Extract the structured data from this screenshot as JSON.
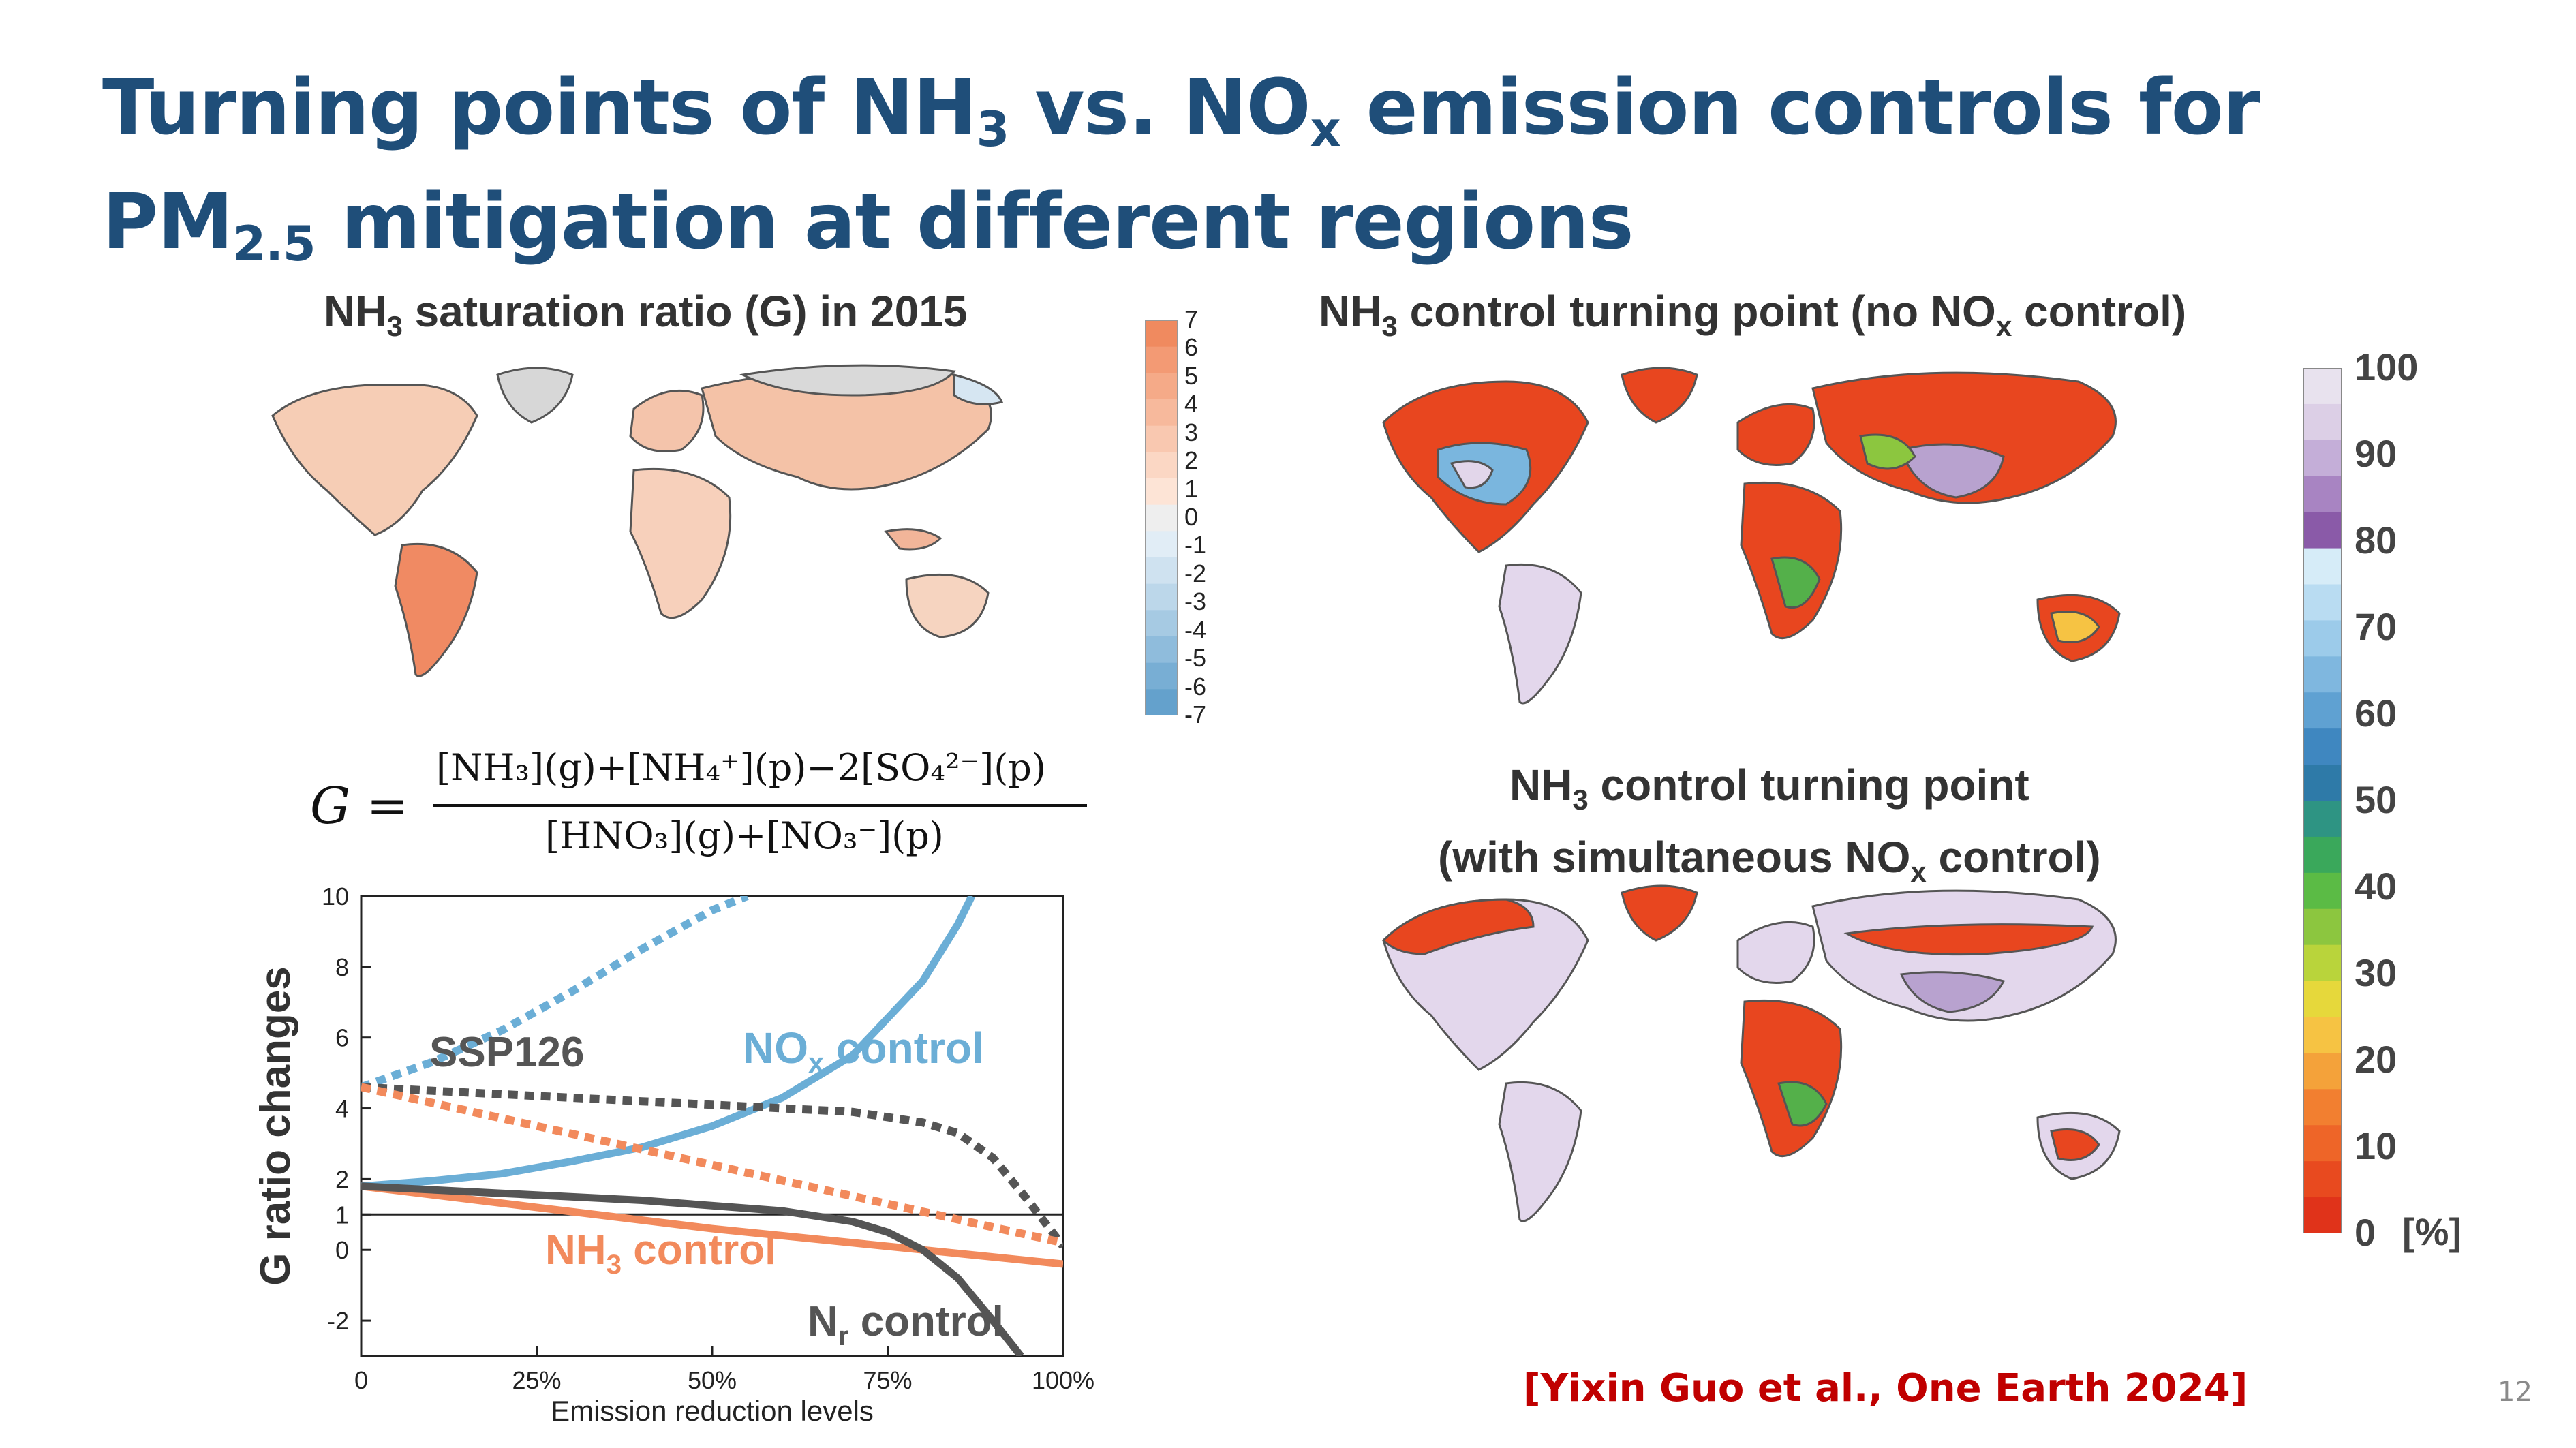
{
  "slide": {
    "title_line1_a": "Turning points of NH",
    "title_line1_sub1": "3",
    "title_line1_b": " vs. NO",
    "title_line1_sub2": "x",
    "title_line1_c": " emission controls for",
    "title_line2_a": "PM",
    "title_line2_sub": "2.5",
    "title_line2_b": " mitigation at different regions",
    "citation": "[Yixin Guo et al., One Earth 2024]",
    "page_number": "12"
  },
  "panels": {
    "saturation": {
      "title_a": "NH",
      "title_sub": "3",
      "title_b": " saturation ratio (G) in 2015",
      "colorbar_ticks": [
        "7",
        "6",
        "5",
        "4",
        "3",
        "2",
        "1",
        "0",
        "-1",
        "-2",
        "-3",
        "-4",
        "-5",
        "-6",
        "-7"
      ]
    },
    "turning_no_nox": {
      "title_a": "NH",
      "title_sub1": "3",
      "title_b": " control turning point (no NO",
      "title_sub2": "x",
      "title_c": " control)"
    },
    "turning_with_nox": {
      "title_line1_a": "NH",
      "title_line1_sub": "3",
      "title_line1_b": " control turning point",
      "title_line2_a": "(with simultaneous NO",
      "title_line2_sub": "x",
      "title_line2_b": " control)"
    },
    "percent_colorbar": {
      "ticks": [
        "100",
        "90",
        "80",
        "70",
        "60",
        "50",
        "40",
        "30",
        "20",
        "10",
        "0"
      ],
      "unit": "[%]"
    }
  },
  "formula": {
    "lhs": "G =",
    "numerator": "[NH₃](g)+[NH₄⁺](p)−2[SO₄²⁻](p)",
    "denominator": "[HNO₃](g)+[NO₃⁻](p)"
  },
  "chart_data": {
    "type": "line",
    "xlabel": "Emission reduction levels",
    "ylabel": "G ratio changes",
    "x_ticks": [
      "0",
      "25%",
      "50%",
      "75%",
      "100%"
    ],
    "y_ticks": [
      "10",
      "8",
      "6",
      "4",
      "2",
      "1",
      "0",
      "-2"
    ],
    "xlim": [
      0,
      100
    ],
    "ylim": [
      -3,
      10
    ],
    "reference_line_y": 1,
    "annotations": {
      "ssp126": "SSP126",
      "nox_a": "NO",
      "nox_sub": "x",
      "nox_b": " control",
      "nh3_a": "NH",
      "nh3_sub": "3",
      "nh3_b": " control",
      "nr_a": "N",
      "nr_sub": "r",
      "nr_b": " control"
    },
    "series": [
      {
        "name": "NOx control",
        "color": "#6baed6",
        "style": "solid",
        "x": [
          0,
          10,
          20,
          30,
          40,
          50,
          60,
          70,
          80,
          85,
          87
        ],
        "y": [
          1.8,
          1.95,
          2.15,
          2.5,
          2.9,
          3.5,
          4.3,
          5.5,
          7.6,
          9.2,
          10
        ]
      },
      {
        "name": "NOx control",
        "color": "#6baed6",
        "style": "dashed",
        "x": [
          0,
          10,
          20,
          30,
          40,
          50,
          55
        ],
        "y": [
          4.6,
          5.3,
          6.2,
          7.3,
          8.5,
          9.6,
          10
        ]
      },
      {
        "name": "SSP126",
        "color": "#555555",
        "style": "dashed",
        "x": [
          0,
          10,
          20,
          30,
          40,
          50,
          60,
          70,
          80,
          85,
          90,
          95,
          100
        ],
        "y": [
          4.6,
          4.5,
          4.4,
          4.3,
          4.2,
          4.1,
          4.0,
          3.9,
          3.6,
          3.3,
          2.6,
          1.4,
          0.1
        ]
      },
      {
        "name": "NH3 control",
        "color": "#f28a5c",
        "style": "dashed",
        "x": [
          0,
          25,
          50,
          75,
          100
        ],
        "y": [
          4.6,
          3.5,
          2.4,
          1.3,
          0.2
        ]
      },
      {
        "name": "NH3 control",
        "color": "#f28a5c",
        "style": "solid",
        "x": [
          0,
          25,
          50,
          75,
          100
        ],
        "y": [
          1.8,
          1.2,
          0.6,
          0.1,
          -0.4
        ]
      },
      {
        "name": "Nr control",
        "color": "#555555",
        "style": "solid",
        "x": [
          0,
          20,
          40,
          60,
          70,
          75,
          80,
          85,
          90,
          94
        ],
        "y": [
          1.8,
          1.6,
          1.4,
          1.1,
          0.8,
          0.5,
          0.0,
          -0.8,
          -2.0,
          -3.0
        ]
      }
    ]
  },
  "colors": {
    "title_blue": "#1f4e79",
    "citation_red": "#c00000",
    "nox_blue": "#6baed6",
    "nh3_orange": "#f28a5c",
    "nr_gray": "#555555"
  }
}
